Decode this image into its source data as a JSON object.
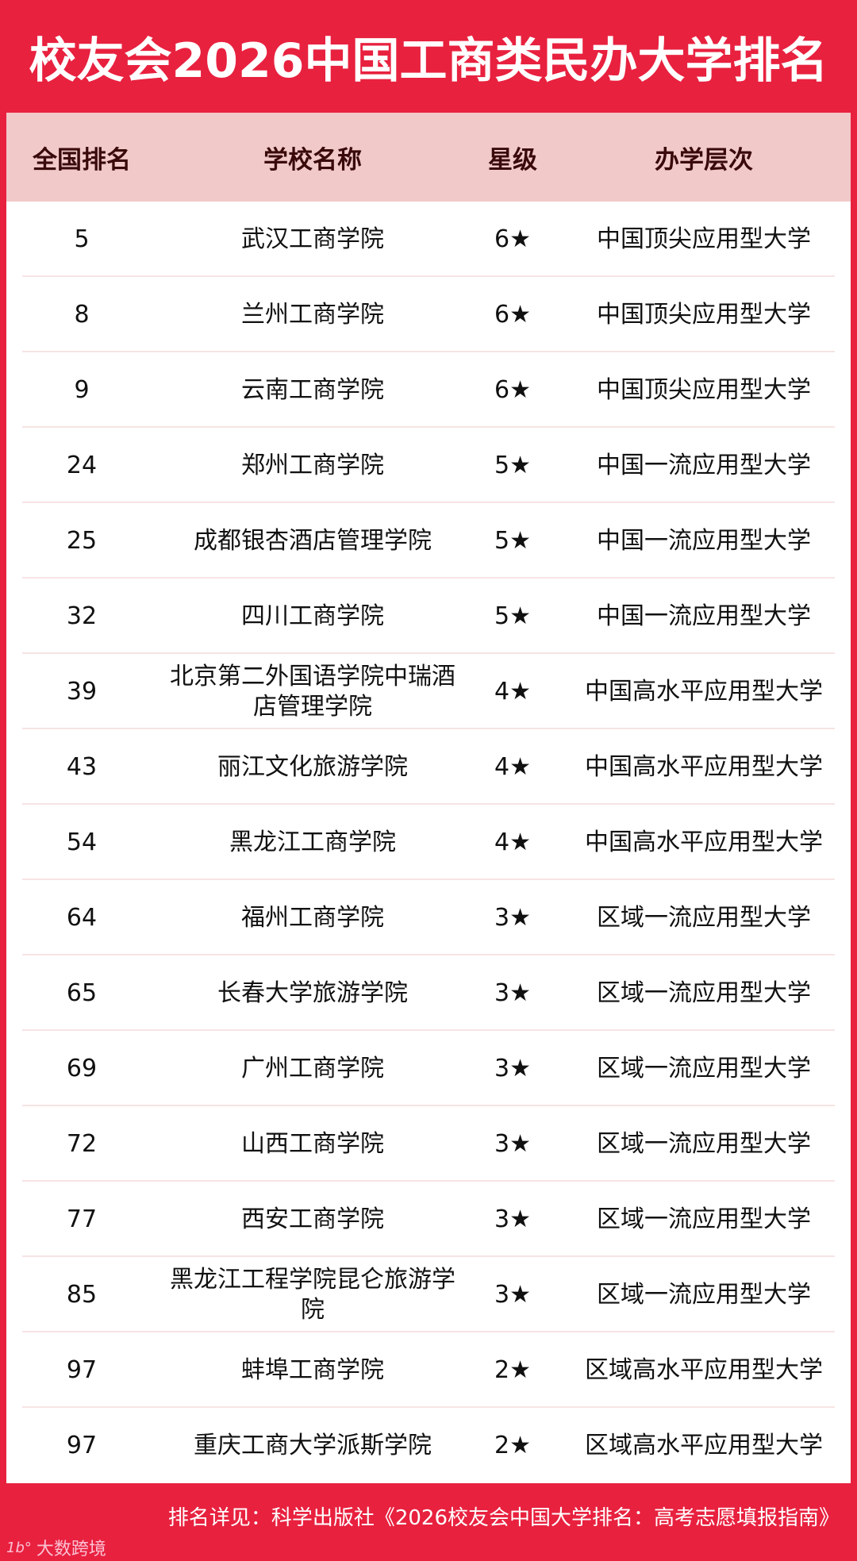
{
  "title": "校友会2026中国工商类民办大学排名",
  "table": {
    "headers": [
      "全国排名",
      "学校名称",
      "星级",
      "办学层次"
    ],
    "rows": [
      [
        "5",
        "武汉工商学院",
        "6★",
        "中国顶尖应用型大学"
      ],
      [
        "8",
        "兰州工商学院",
        "6★",
        "中国顶尖应用型大学"
      ],
      [
        "9",
        "云南工商学院",
        "6★",
        "中国顶尖应用型大学"
      ],
      [
        "24",
        "郑州工商学院",
        "5★",
        "中国一流应用型大学"
      ],
      [
        "25",
        "成都银杏酒店管理学院",
        "5★",
        "中国一流应用型大学"
      ],
      [
        "32",
        "四川工商学院",
        "5★",
        "中国一流应用型大学"
      ],
      [
        "39",
        "北京第二外国语学院中瑞酒店管理学院",
        "4★",
        "中国高水平应用型大学"
      ],
      [
        "43",
        "丽江文化旅游学院",
        "4★",
        "中国高水平应用型大学"
      ],
      [
        "54",
        "黑龙江工商学院",
        "4★",
        "中国高水平应用型大学"
      ],
      [
        "64",
        "福州工商学院",
        "3★",
        "区域一流应用型大学"
      ],
      [
        "65",
        "长春大学旅游学院",
        "3★",
        "区域一流应用型大学"
      ],
      [
        "69",
        "广州工商学院",
        "3★",
        "区域一流应用型大学"
      ],
      [
        "72",
        "山西工商学院",
        "3★",
        "区域一流应用型大学"
      ],
      [
        "77",
        "西安工商学院",
        "3★",
        "区域一流应用型大学"
      ],
      [
        "85",
        "黑龙江工程学院昆仑旅游学院",
        "3★",
        "区域一流应用型大学"
      ],
      [
        "97",
        "蚌埠工商学院",
        "2★",
        "区域高水平应用型大学"
      ],
      [
        "97",
        "重庆工商大学派斯学院",
        "2★",
        "区域高水平应用型大学"
      ]
    ]
  },
  "footer": "排名详见：科学出版社《2026校友会中国大学排名：高考志愿填报指南》",
  "watermark": {
    "mark": "1b°",
    "text": "大数跨境"
  },
  "colors": {
    "brand_red": "#e8213f",
    "header_bg": "#f1c9c9",
    "header_text": "#3a0a0a"
  }
}
